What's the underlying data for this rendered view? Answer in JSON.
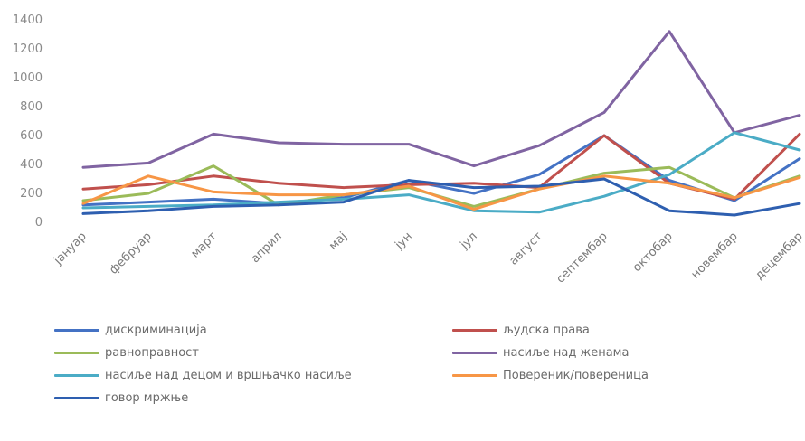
{
  "chart_data": {
    "type": "line",
    "title": "",
    "xlabel": "",
    "ylabel": "",
    "ylim": [
      0,
      1400
    ],
    "yticks": [
      0,
      200,
      400,
      600,
      800,
      1000,
      1200,
      1400
    ],
    "grid": false,
    "legend_position": "bottom",
    "categories": [
      "јануар",
      "фебруар",
      "март",
      "април",
      "мај",
      "јун",
      "јул",
      "август",
      "септембар",
      "октобар",
      "новембар",
      "децембар"
    ],
    "series": [
      {
        "name": "дискриминација",
        "color": "#4472c4",
        "values": [
          120,
          140,
          160,
          130,
          170,
          290,
          200,
          330,
          600,
          290,
          150,
          440
        ]
      },
      {
        "name": "људска права",
        "color": "#c0504d",
        "values": [
          230,
          260,
          320,
          270,
          240,
          260,
          270,
          240,
          600,
          270,
          160,
          610
        ]
      },
      {
        "name": "равноправност",
        "color": "#9bbb59",
        "values": [
          150,
          200,
          390,
          120,
          190,
          240,
          110,
          230,
          340,
          380,
          170,
          320
        ]
      },
      {
        "name": "насиље над женама",
        "color": "#8064a2",
        "values": [
          380,
          410,
          610,
          550,
          540,
          540,
          390,
          530,
          760,
          1320,
          620,
          740
        ]
      },
      {
        "name": "насиље над децом и вршњачко насиље",
        "color": "#4bacc6",
        "values": [
          100,
          110,
          120,
          140,
          160,
          190,
          80,
          70,
          180,
          330,
          620,
          500
        ]
      },
      {
        "name": "Повереник/повереница",
        "color": "#f79646",
        "values": [
          130,
          320,
          210,
          190,
          190,
          250,
          90,
          230,
          320,
          270,
          170,
          310
        ]
      },
      {
        "name": "говор мржње",
        "color": "#2e5fb0",
        "values": [
          60,
          80,
          110,
          120,
          140,
          290,
          240,
          250,
          300,
          80,
          50,
          130
        ]
      }
    ]
  }
}
